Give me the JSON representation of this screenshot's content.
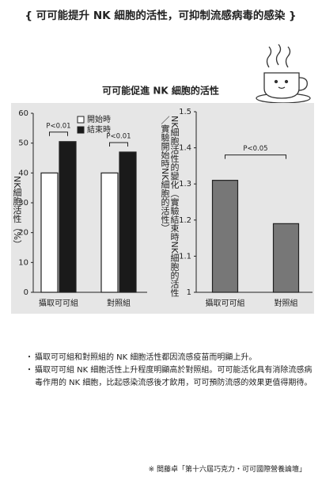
{
  "header": {
    "title": "{ 可可能提升 NK 細胞的活性，可抑制流感病毒的感染 }"
  },
  "section_title": "可可能促進 NK 細胞的活性",
  "chart_data": [
    {
      "type": "bar",
      "ylabel": "NK細胞活性（%）",
      "categories": [
        "攝取可可組",
        "對照組"
      ],
      "series": [
        {
          "name": "開始時",
          "color": "#ffffff",
          "values": [
            40,
            40
          ]
        },
        {
          "name": "結束時",
          "color": "#1a1a1a",
          "values": [
            50.5,
            47
          ]
        }
      ],
      "ylim": [
        0,
        60
      ],
      "yticks": [
        0,
        10,
        20,
        30,
        40,
        50,
        60
      ],
      "grid": false,
      "annotations": [
        "P<0.01",
        "P<0.01"
      ]
    },
    {
      "type": "bar",
      "ylabel": "NK細胞活性的變化（實驗結束時NK細胞的活性／實驗開始時NK細胞的活性）",
      "categories": [
        "攝取可可組",
        "對照組"
      ],
      "values": [
        1.31,
        1.19
      ],
      "color": "#777777",
      "ylim": [
        1,
        1.5
      ],
      "yticks": [
        1,
        1.1,
        1.2,
        1.3,
        1.4,
        1.5
      ],
      "grid": false,
      "annotations": [
        "P<0.05"
      ]
    }
  ],
  "notes": [
    "攝取可可組和對照組的 NK 細胞活性都因流感疫苗而明顯上升。",
    "攝取可可組 NK 細胞活性上升程度明顯高於對照組。可可能活化具有消除流感病毒作用的 NK 細胞，比起感染流感後才飲用，可可預防流感的效果更值得期待。"
  ],
  "source": "※ 間藤卓「第十六屆巧克力・可可國際營養論壇」"
}
